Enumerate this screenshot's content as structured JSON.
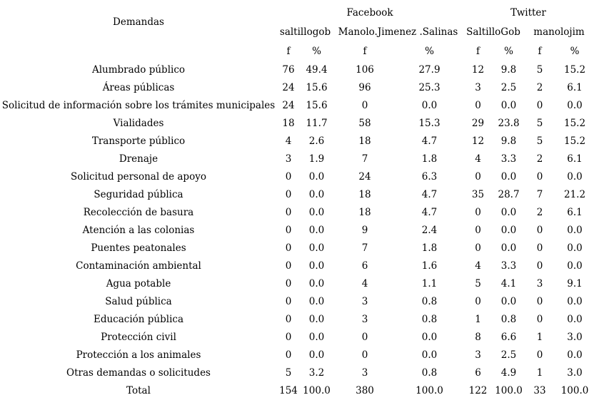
{
  "table": {
    "demandas_header": "Demandas",
    "groups": [
      {
        "label": "Facebook"
      },
      {
        "label": "Twitter"
      }
    ],
    "accounts": [
      "saltillogob",
      "Manolo.Jimenez .Salinas",
      "SaltilloGob",
      "manolojim"
    ],
    "freq_headers": [
      "f",
      "%",
      "f",
      "%",
      "f",
      "%",
      "f",
      "%"
    ],
    "rows": [
      {
        "label": "Alumbrado público",
        "values": [
          "76",
          "49.4",
          "106",
          "27.9",
          "12",
          "9.8",
          "5",
          "15.2"
        ]
      },
      {
        "label": "Áreas públicas",
        "values": [
          "24",
          "15.6",
          "96",
          "25.3",
          "3",
          "2.5",
          "2",
          "6.1"
        ]
      },
      {
        "label": "Solicitud de información sobre los trámites municipales",
        "values": [
          "24",
          "15.6",
          "0",
          "0.0",
          "0",
          "0.0",
          "0",
          "0.0"
        ]
      },
      {
        "label": "Vialidades",
        "values": [
          "18",
          "11.7",
          "58",
          "15.3",
          "29",
          "23.8",
          "5",
          "15.2"
        ]
      },
      {
        "label": "Transporte público",
        "values": [
          "4",
          "2.6",
          "18",
          "4.7",
          "12",
          "9.8",
          "5",
          "15.2"
        ]
      },
      {
        "label": "Drenaje",
        "values": [
          "3",
          "1.9",
          "7",
          "1.8",
          "4",
          "3.3",
          "2",
          "6.1"
        ]
      },
      {
        "label": "Solicitud personal de apoyo",
        "values": [
          "0",
          "0.0",
          "24",
          "6.3",
          "0",
          "0.0",
          "0",
          "0.0"
        ]
      },
      {
        "label": "Seguridad pública",
        "values": [
          "0",
          "0.0",
          "18",
          "4.7",
          "35",
          "28.7",
          "7",
          "21.2"
        ]
      },
      {
        "label": "Recolección de basura",
        "values": [
          "0",
          "0.0",
          "18",
          "4.7",
          "0",
          "0.0",
          "2",
          "6.1"
        ]
      },
      {
        "label": "Atención a las colonias",
        "values": [
          "0",
          "0.0",
          "9",
          "2.4",
          "0",
          "0.0",
          "0",
          "0.0"
        ]
      },
      {
        "label": "Puentes peatonales",
        "values": [
          "0",
          "0.0",
          "7",
          "1.8",
          "0",
          "0.0",
          "0",
          "0.0"
        ]
      },
      {
        "label": "Contaminación ambiental",
        "values": [
          "0",
          "0.0",
          "6",
          "1.6",
          "4",
          "3.3",
          "0",
          "0.0"
        ]
      },
      {
        "label": "Agua potable",
        "values": [
          "0",
          "0.0",
          "4",
          "1.1",
          "5",
          "4.1",
          "3",
          "9.1"
        ]
      },
      {
        "label": "Salud pública",
        "values": [
          "0",
          "0.0",
          "3",
          "0.8",
          "0",
          "0.0",
          "0",
          "0.0"
        ]
      },
      {
        "label": "Educación pública",
        "values": [
          "0",
          "0.0",
          "3",
          "0.8",
          "1",
          "0.8",
          "0",
          "0.0"
        ]
      },
      {
        "label": "Protección civil",
        "values": [
          "0",
          "0.0",
          "0",
          "0.0",
          "8",
          "6.6",
          "1",
          "3.0"
        ]
      },
      {
        "label": "Protección a los animales",
        "values": [
          "0",
          "0.0",
          "0",
          "0.0",
          "3",
          "2.5",
          "0",
          "0.0"
        ]
      },
      {
        "label": "Otras demandas o solicitudes",
        "values": [
          "5",
          "3.2",
          "3",
          "0.8",
          "6",
          "4.9",
          "1",
          "3.0"
        ]
      },
      {
        "label": "Total",
        "values": [
          "154",
          "100.0",
          "380",
          "100.0",
          "122",
          "100.0",
          "33",
          "100.0"
        ]
      }
    ],
    "colors": {
      "text": "#000000",
      "background": "#ffffff"
    }
  }
}
